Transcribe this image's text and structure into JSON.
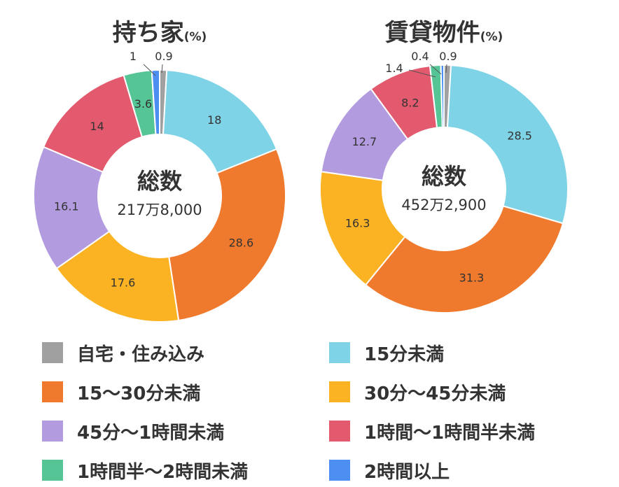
{
  "chart_data": {
    "type": "pie",
    "categories": [
      "自宅・住み込み",
      "15分未満",
      "15〜30分未満",
      "30分〜45分未満",
      "45分〜1時間未満",
      "1時間〜1時間半未満",
      "1時間半〜2時間未満",
      "2時間以上"
    ],
    "colors": [
      "#a0a0a0",
      "#7fd3e6",
      "#ef7a2d",
      "#fbb324",
      "#b39be0",
      "#e35a6e",
      "#56c595",
      "#4d8ef2"
    ],
    "charts": [
      {
        "title": "持ち家",
        "unit": "(%)",
        "center_title": "総数",
        "center_value": "217万8,000",
        "values": [
          0.9,
          18,
          28.6,
          17.6,
          16.1,
          14,
          3.6,
          1
        ],
        "labels": [
          "0.9",
          "18",
          "28.6",
          "17.6",
          "16.1",
          "14",
          "3.6",
          "1"
        ]
      },
      {
        "title": "賃貸物件",
        "unit": "(%)",
        "center_title": "総数",
        "center_value": "452万2,900",
        "values": [
          0.9,
          28.5,
          31.3,
          16.3,
          12.7,
          8.2,
          1.4,
          0.4
        ],
        "labels": [
          "0.9",
          "28.5",
          "31.3",
          "16.3",
          "12.7",
          "8.2",
          "1.4",
          "0.4"
        ]
      }
    ],
    "legend": [
      {
        "label": "自宅・住み込み",
        "color": "#a0a0a0"
      },
      {
        "label": "15分未満",
        "color": "#7fd3e6"
      },
      {
        "label": "15〜30分未満",
        "color": "#ef7a2d"
      },
      {
        "label": "30分〜45分未満",
        "color": "#fbb324"
      },
      {
        "label": "45分〜1時間未満",
        "color": "#b39be0"
      },
      {
        "label": "1時間〜1時間半未満",
        "color": "#e35a6e"
      },
      {
        "label": "1時間半〜2時間未満",
        "color": "#56c595"
      },
      {
        "label": "2時間以上",
        "color": "#4d8ef2"
      }
    ]
  }
}
